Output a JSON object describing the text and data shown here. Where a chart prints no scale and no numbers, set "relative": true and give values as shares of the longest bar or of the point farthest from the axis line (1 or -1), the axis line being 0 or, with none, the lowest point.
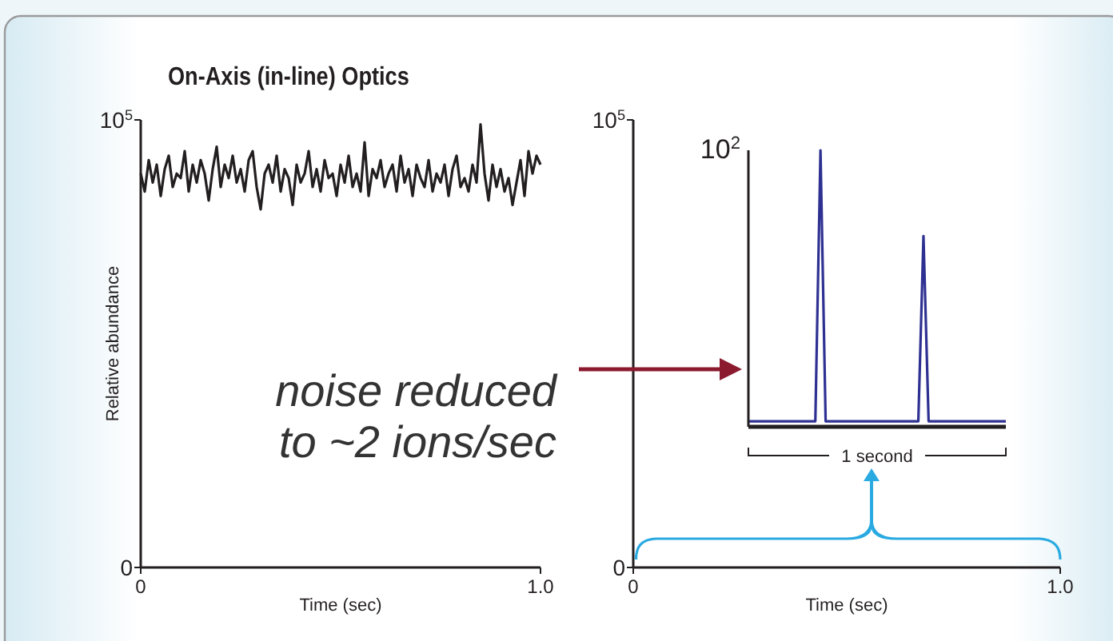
{
  "chart_data": [
    {
      "type": "line",
      "title": "On-Axis (in-line) Optics",
      "xlabel": "Time (sec)",
      "ylabel": "Relative abundance",
      "xlim": [
        0,
        1
      ],
      "xticks": [
        0,
        {
          "value": 1,
          "label": "1.0"
        }
      ],
      "ylim": [
        0,
        100000
      ],
      "yticks": [
        0,
        {
          "value": 100000,
          "label": "10$^{5}$"
        }
      ],
      "annotations": [
        "noise reduced to ~2 ions/sec"
      ],
      "x": [
        0,
        0.01,
        0.02,
        0.03,
        0.04,
        0.05,
        0.06,
        0.07,
        0.08,
        0.09,
        0.1,
        0.11,
        0.12,
        0.13,
        0.14,
        0.15,
        0.16,
        0.17,
        0.18,
        0.19,
        0.2,
        0.21,
        0.22,
        0.23,
        0.24,
        0.25,
        0.26,
        0.27,
        0.28,
        0.29,
        0.3,
        0.31,
        0.32,
        0.33,
        0.34,
        0.35,
        0.36,
        0.37,
        0.38,
        0.39,
        0.4,
        0.41,
        0.42,
        0.43,
        0.44,
        0.45,
        0.46,
        0.47,
        0.48,
        0.49,
        0.5,
        0.51,
        0.52,
        0.53,
        0.54,
        0.55,
        0.56,
        0.57,
        0.58,
        0.59,
        0.6,
        0.61,
        0.62,
        0.63,
        0.64,
        0.65,
        0.66,
        0.67,
        0.68,
        0.69,
        0.7,
        0.71,
        0.72,
        0.73,
        0.74,
        0.75,
        0.76,
        0.77,
        0.78,
        0.79,
        0.8,
        0.81,
        0.82,
        0.83,
        0.84,
        0.85,
        0.86,
        0.87,
        0.88,
        0.89,
        0.9,
        0.91,
        0.92,
        0.93,
        0.94,
        0.95,
        0.96,
        0.97,
        0.98,
        0.99,
        1
      ],
      "series": [
        {
          "color": "#231f20",
          "values": [
            88000,
            84000,
            91000,
            86000,
            90000,
            83000,
            89000,
            92000,
            85000,
            88000,
            87000,
            93000,
            84000,
            90000,
            86000,
            91000,
            88000,
            82000,
            89000,
            94000,
            85000,
            90000,
            87000,
            92000,
            86000,
            89000,
            84000,
            91000,
            93000,
            85000,
            80000,
            88000,
            90000,
            86000,
            92000,
            84000,
            89000,
            87000,
            81000,
            90000,
            86000,
            88000,
            93000,
            85000,
            89000,
            84000,
            91000,
            87000,
            88000,
            83000,
            90000,
            86000,
            92000,
            85000,
            88000,
            84000,
            95000,
            83000,
            89000,
            87000,
            91000,
            85000,
            88000,
            90000,
            84000,
            92000,
            86000,
            89000,
            83000,
            90000,
            87000,
            85000,
            91000,
            84000,
            88000,
            86000,
            90000,
            83000,
            89000,
            92000,
            85000,
            87000,
            84000,
            90000,
            86000,
            99000,
            88000,
            82000,
            90000,
            85000,
            89000,
            84000,
            87000,
            81000,
            86000,
            91000,
            83000,
            93000,
            88000,
            92000,
            90000
          ]
        }
      ]
    },
    {
      "type": "line",
      "xlabel": "Time (sec)",
      "xlim": [
        0,
        1
      ],
      "xticks": [
        0,
        {
          "value": 1,
          "label": "1.0"
        }
      ],
      "ylim": [
        0,
        100000
      ],
      "yticks": [
        0,
        {
          "value": 100000,
          "label": "10$^{5}$"
        }
      ]
    },
    {
      "type": "line",
      "relative": true,
      "annotations": [
        "10$^{2}$",
        "1 second"
      ],
      "categories": [
        null,
        null,
        null,
        null,
        null,
        null,
        null,
        null,
        null,
        null,
        null,
        null,
        null,
        null,
        null,
        null,
        null,
        null,
        null,
        null,
        null,
        null,
        null,
        null,
        null,
        null,
        null,
        null,
        null,
        null,
        null,
        null,
        null,
        null,
        null,
        null,
        null,
        null,
        null,
        null,
        null,
        null,
        null,
        null,
        null,
        null,
        null,
        null,
        null,
        null,
        null
      ],
      "series": [
        {
          "color": "#2e3192",
          "values": [
            0.02,
            0.02,
            0.02,
            0.02,
            0.02,
            0.02,
            0.02,
            0.02,
            0.02,
            0.02,
            0.02,
            0.02,
            0.02,
            0.02,
            1,
            0.02,
            0.02,
            0.02,
            0.02,
            0.02,
            0.02,
            0.02,
            0.02,
            0.02,
            0.02,
            0.02,
            0.02,
            0.02,
            0.02,
            0.02,
            0.02,
            0.02,
            0.02,
            0.02,
            0.69,
            0.02,
            0.02,
            0.02,
            0.02,
            0.02,
            0.02,
            0.02,
            0.02,
            0.02,
            0.02,
            0.02,
            0.02,
            0.02,
            0.02,
            0.02,
            0.02
          ]
        }
      ]
    }
  ]
}
